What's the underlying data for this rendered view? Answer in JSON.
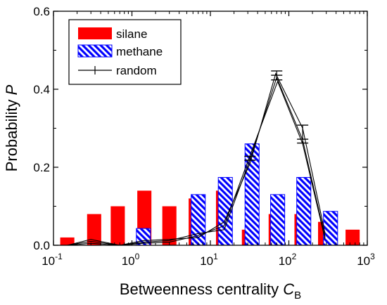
{
  "chart_data": {
    "type": "bar",
    "x_scale": "log",
    "xlim": [
      0.1,
      1000
    ],
    "ylim": [
      0,
      0.6
    ],
    "xlabel": {
      "text": "Betweenness centrality",
      "symbol": "C",
      "subscript": "B"
    },
    "ylabel": {
      "text": "Probability",
      "symbol": "P"
    },
    "x_tick_labels": [
      {
        "base": "10",
        "exp": "-1",
        "value": 0.1
      },
      {
        "base": "10",
        "exp": "0",
        "value": 1
      },
      {
        "base": "10",
        "exp": "1",
        "value": 10
      },
      {
        "base": "10",
        "exp": "2",
        "value": 100
      },
      {
        "base": "10",
        "exp": "3",
        "value": 1000
      }
    ],
    "y_ticks": [
      0.0,
      0.2,
      0.4,
      0.6
    ],
    "y_tick_labels": [
      "0.0",
      "0.2",
      "0.4",
      "0.6"
    ],
    "legend": {
      "position": "top-left",
      "entries": [
        "silane",
        "methane",
        "random"
      ]
    },
    "colors": {
      "silane": "#ff0000",
      "methane": "#0000ff",
      "random": "#000000"
    },
    "series": [
      {
        "name": "silane",
        "style": "bar",
        "x": [
          0.15,
          0.33,
          0.66,
          1.44,
          3.0,
          6.5,
          14.5,
          31,
          68,
          145,
          290,
          650
        ],
        "values": [
          0.02,
          0.08,
          0.1,
          0.14,
          0.1,
          0.12,
          0.14,
          0.04,
          0.08,
          0.08,
          0.06,
          0.04
        ]
      },
      {
        "name": "methane",
        "style": "hatched-bar",
        "x": [
          1.4,
          7.0,
          15.5,
          34,
          72,
          155,
          340
        ],
        "values": [
          0.043,
          0.13,
          0.174,
          0.26,
          0.13,
          0.174,
          0.087
        ]
      },
      {
        "name": "random",
        "style": "line-errorbar",
        "lines": [
          {
            "x": [
              0.15,
              0.3,
              0.7,
              1.4,
              3,
              7,
              15,
              32,
              68,
              150,
              290
            ],
            "values": [
              0.0,
              0.015,
              0.0,
              0.012,
              0.015,
              0.02,
              0.06,
              0.21,
              0.44,
              0.3,
              0.03
            ]
          },
          {
            "x": [
              0.15,
              0.3,
              0.7,
              1.4,
              3,
              7,
              15,
              32,
              70,
              150,
              290
            ],
            "values": [
              0.0,
              0.01,
              0.0,
              0.008,
              0.012,
              0.03,
              0.04,
              0.22,
              0.43,
              0.27,
              0.02
            ]
          },
          {
            "x": [
              0.15,
              0.3,
              0.7,
              1.4,
              3,
              7,
              15,
              32,
              72,
              150,
              290
            ],
            "values": [
              0.0,
              0.005,
              0.0,
              0.005,
              0.008,
              0.025,
              0.05,
              0.23,
              0.42,
              0.26,
              0.015
            ]
          }
        ],
        "error_bars": [
          {
            "x": 32,
            "values": [
              0.218,
              0.228
            ]
          },
          {
            "x": 70,
            "values": [
              0.424,
              0.436,
              0.447
            ]
          },
          {
            "x": 150,
            "values": [
              0.262,
              0.272,
              0.308
            ]
          }
        ]
      }
    ]
  }
}
